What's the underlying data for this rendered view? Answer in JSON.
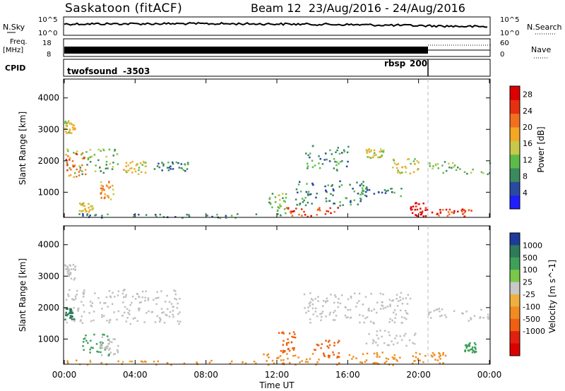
{
  "header": {
    "radar_title": "Saskatoon (fitACF)",
    "beam_info": "Beam 12  23/Aug/2016 - 24/Aug/2016"
  },
  "strip_panels": {
    "nsky_label": "N.Sky",
    "nsky_ticks": [
      "10^5",
      "10^0"
    ],
    "nsearch_label": "N.Search",
    "nsearch_ticks": [
      "10^5",
      "10^0"
    ],
    "freq_label_line1": "Freq.",
    "freq_label_line2": "[MHz]",
    "freq_ticks": [
      "18",
      "8"
    ],
    "nave_label": "Nave",
    "nave_ticks": [
      "60",
      "0"
    ],
    "cpid_label": "CPID",
    "cpid_segments": [
      {
        "name": "twofsound",
        "id": "-3503"
      },
      {
        "name": "rbsp",
        "id": "200"
      }
    ]
  },
  "colors": {
    "power_scale": [
      "#1e1eff",
      "#2a4aa0",
      "#3b8a5e",
      "#5dbb4a",
      "#c8c84a",
      "#f5a623",
      "#f07020",
      "#e63010",
      "#dd0000"
    ],
    "velocity_scale": [
      "#1c3c9c",
      "#2e7a5a",
      "#3fa05a",
      "#7ac84a",
      "#c8c8c8",
      "#f0b040",
      "#f08c20",
      "#f06010",
      "#e02010",
      "#dd0000"
    ],
    "ground_scatter": "#c0c0c0"
  },
  "chart_data": [
    {
      "type": "heatmap",
      "panel": "power",
      "ylabel": "Slant Range [km]",
      "xlabel": "",
      "yticks": [
        "1000",
        "2000",
        "3000",
        "4000"
      ],
      "ylim": [
        200,
        4600
      ],
      "xlim": [
        "00:00",
        "24:00"
      ],
      "colorbar": {
        "label": "Power [dB]",
        "ticks": [
          "4",
          "8",
          "12",
          "16",
          "20",
          "24",
          "28"
        ],
        "range": [
          0,
          30
        ]
      },
      "scatter_regions": [
        {
          "t0": 0.0,
          "t1": 3.0,
          "r0": 1600,
          "r1": 2400,
          "value": 12
        },
        {
          "t0": 0.0,
          "t1": 1.2,
          "r0": 1500,
          "r1": 2300,
          "value": 22
        },
        {
          "t0": 0.0,
          "t1": 0.6,
          "r0": 2900,
          "r1": 3300,
          "value": 16
        },
        {
          "t0": 3.0,
          "t1": 4.6,
          "r0": 1600,
          "r1": 2000,
          "value": 16
        },
        {
          "t0": 5.0,
          "t1": 7.0,
          "r0": 1700,
          "r1": 2000,
          "value": 8
        },
        {
          "t0": 2.0,
          "t1": 2.8,
          "r0": 800,
          "r1": 1400,
          "value": 20
        },
        {
          "t0": 0.8,
          "t1": 1.6,
          "r0": 400,
          "r1": 700,
          "value": 16
        },
        {
          "t0": 11.5,
          "t1": 12.5,
          "r0": 250,
          "r1": 1000,
          "value": 12
        },
        {
          "t0": 12.5,
          "t1": 15.5,
          "r0": 250,
          "r1": 550,
          "value": 24
        },
        {
          "t0": 13.0,
          "t1": 17.0,
          "r0": 600,
          "r1": 1400,
          "value": 8
        },
        {
          "t0": 13.5,
          "t1": 16.0,
          "r0": 1700,
          "r1": 2500,
          "value": 8
        },
        {
          "t0": 16.0,
          "t1": 19.0,
          "r0": 900,
          "r1": 1200,
          "value": 8
        },
        {
          "t0": 17.0,
          "t1": 18.0,
          "r0": 2100,
          "r1": 2400,
          "value": 16
        },
        {
          "t0": 18.5,
          "t1": 20.0,
          "r0": 1600,
          "r1": 2100,
          "value": 16
        },
        {
          "t0": 19.5,
          "t1": 20.5,
          "r0": 250,
          "r1": 700,
          "value": 28
        },
        {
          "t0": 20.5,
          "t1": 23.0,
          "r0": 250,
          "r1": 500,
          "value": 24
        },
        {
          "t0": 20.5,
          "t1": 24.0,
          "r0": 1600,
          "r1": 2000,
          "value": 12
        },
        {
          "t0": 0.0,
          "t1": 11.0,
          "r0": 200,
          "r1": 350,
          "value": 8
        }
      ]
    },
    {
      "type": "heatmap",
      "panel": "velocity",
      "ylabel": "Slant Range [km]",
      "xlabel": "Time UT",
      "xticks": [
        "00:00",
        "04:00",
        "08:00",
        "12:00",
        "16:00",
        "20:00",
        "00:00"
      ],
      "yticks": [
        "1000",
        "2000",
        "3000",
        "4000"
      ],
      "ylim": [
        200,
        4600
      ],
      "xlim": [
        "00:00",
        "24:00"
      ],
      "colorbar": {
        "label": "Velocity [m s^-1]",
        "ticks": [
          "1000",
          "500",
          "100",
          "25",
          "-25",
          "-100",
          "-500",
          "-1000"
        ],
        "range": [
          -1200,
          1200
        ]
      },
      "scatter_regions": [
        {
          "t0": 0.0,
          "t1": 6.5,
          "r0": 1500,
          "r1": 2600,
          "value": 0,
          "gs": true
        },
        {
          "t0": 0.0,
          "t1": 0.6,
          "r0": 2900,
          "r1": 3400,
          "value": 0,
          "gs": true
        },
        {
          "t0": 1.0,
          "t1": 2.5,
          "r0": 500,
          "r1": 1200,
          "value": 400
        },
        {
          "t0": 0.0,
          "t1": 0.5,
          "r0": 1600,
          "r1": 2000,
          "value": 600
        },
        {
          "t0": 2.0,
          "t1": 3.0,
          "r0": 500,
          "r1": 1100,
          "value": 0,
          "gs": true
        },
        {
          "t0": 0.0,
          "t1": 11.0,
          "r0": 200,
          "r1": 350,
          "value": -150
        },
        {
          "t0": 11.0,
          "t1": 19.0,
          "r0": 200,
          "r1": 600,
          "value": -300
        },
        {
          "t0": 12.0,
          "t1": 13.0,
          "r0": 600,
          "r1": 1300,
          "value": -600
        },
        {
          "t0": 14.0,
          "t1": 15.5,
          "r0": 400,
          "r1": 1000,
          "value": -600
        },
        {
          "t0": 13.5,
          "t1": 19.5,
          "r0": 1500,
          "r1": 2500,
          "value": 0,
          "gs": true
        },
        {
          "t0": 17.0,
          "t1": 20.0,
          "r0": 800,
          "r1": 1300,
          "value": 0,
          "gs": true
        },
        {
          "t0": 19.5,
          "t1": 21.5,
          "r0": 250,
          "r1": 600,
          "value": -300
        },
        {
          "t0": 20.5,
          "t1": 24.0,
          "r0": 1600,
          "r1": 2000,
          "value": 0,
          "gs": true
        },
        {
          "t0": 22.5,
          "t1": 23.2,
          "r0": 600,
          "r1": 900,
          "value": 200
        }
      ]
    },
    {
      "type": "line",
      "panel": "n-sky-n-search",
      "series": [
        {
          "name": "N.Sky",
          "style": "solid"
        },
        {
          "name": "N.Search",
          "style": "dotted"
        }
      ]
    },
    {
      "type": "line",
      "panel": "freq-nave",
      "series": [
        {
          "name": "Freq.",
          "style": "solid"
        },
        {
          "name": "Nave",
          "style": "dotted"
        }
      ]
    }
  ]
}
